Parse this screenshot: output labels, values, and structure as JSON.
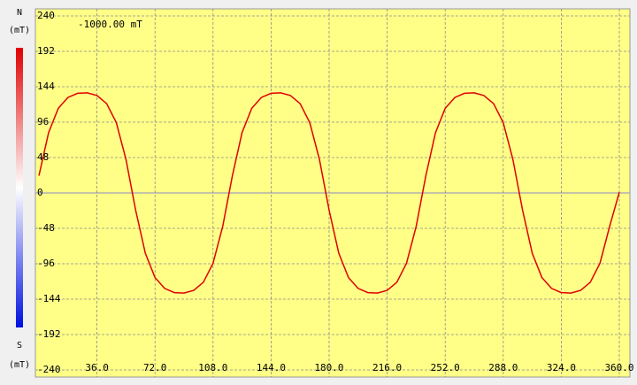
{
  "chart_data": {
    "type": "line",
    "annotation": "-1000.00 mT",
    "colorbar_labels": {
      "top": "N",
      "top_unit": "(mT)",
      "bottom": "S",
      "bottom_unit": "(mT)"
    },
    "x": [
      0,
      6,
      12,
      18,
      24,
      30,
      36,
      42,
      48,
      54,
      60,
      66,
      72,
      78,
      84,
      90,
      96,
      102,
      108,
      114,
      120,
      126,
      132,
      138,
      144,
      150,
      156,
      162,
      168,
      174,
      180,
      186,
      192,
      198,
      204,
      210,
      216,
      222,
      228,
      234,
      240,
      246,
      252,
      258,
      264,
      270,
      276,
      282,
      288,
      294,
      300,
      306,
      312,
      318,
      324,
      330,
      336,
      342,
      348,
      354,
      360
    ],
    "series": [
      {
        "color": "#e00000",
        "values": [
          23.4,
          81.8,
          114.7,
          129.5,
          135.1,
          135.7,
          132.1,
          121.1,
          95.4,
          45.4,
          -23.4,
          -81.8,
          -114.7,
          -129.5,
          -135.1,
          -135.7,
          -132.1,
          -121.1,
          -95.4,
          -45.4,
          23.4,
          81.8,
          114.7,
          129.5,
          135.1,
          135.7,
          132.1,
          121.1,
          95.4,
          45.4,
          -23.4,
          -81.8,
          -114.7,
          -129.5,
          -135.1,
          -135.7,
          -132.1,
          -121.1,
          -95.4,
          -45.4,
          23.4,
          81.8,
          114.7,
          129.5,
          135.1,
          135.7,
          132.1,
          121.1,
          95.4,
          45.4,
          -23.4,
          -81.8,
          -114.7,
          -129.5,
          -135.1,
          -135.7,
          -132.1,
          -121.1,
          -95.4,
          -45.4,
          1.0
        ]
      }
    ],
    "xlim": [
      0,
      360
    ],
    "xticks": [
      {
        "value": 36,
        "label": "36.0"
      },
      {
        "value": 72,
        "label": "72.0"
      },
      {
        "value": 108,
        "label": "108.0"
      },
      {
        "value": 144,
        "label": "144.0"
      },
      {
        "value": 180,
        "label": "180.0"
      },
      {
        "value": 216,
        "label": "216.0"
      },
      {
        "value": 252,
        "label": "252.0"
      },
      {
        "value": 288,
        "label": "288.0"
      },
      {
        "value": 324,
        "label": "324.0"
      },
      {
        "value": 360,
        "label": "360.0"
      }
    ],
    "ylim": [
      -240,
      240
    ],
    "yticks": [
      240,
      192,
      144,
      96,
      48,
      0,
      -48,
      -96,
      -144,
      -192,
      -240
    ],
    "grid": true
  }
}
